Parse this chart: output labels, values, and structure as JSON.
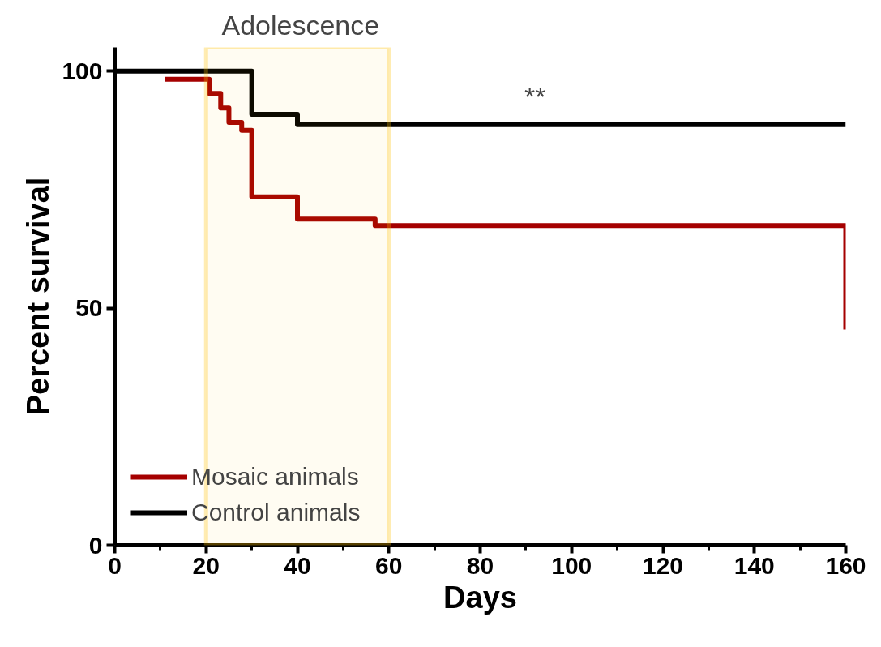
{
  "chart_data": {
    "type": "step",
    "xlabel": "Days",
    "ylabel": "Percent survival",
    "xlim": [
      0,
      160
    ],
    "ylim": [
      0,
      105
    ],
    "xticks": [
      0,
      20,
      40,
      60,
      80,
      100,
      120,
      140,
      160
    ],
    "yticks": [
      0,
      50,
      100
    ],
    "series": [
      {
        "name": "Mosaic animals",
        "color": "#a50000",
        "x": [
          11,
          20.7,
          23.2,
          25,
          27.8,
          30,
          40,
          57,
          160
        ],
        "values": [
          98.3,
          95.3,
          92.2,
          89.2,
          87.5,
          73.5,
          68.8,
          67.4,
          45.5
        ]
      },
      {
        "name": "Control animals",
        "color": "#000000",
        "x": [
          0,
          30,
          40,
          160
        ],
        "values": [
          100,
          90.9,
          88.7,
          88.7
        ]
      }
    ],
    "bands": [
      {
        "axis": "x",
        "from": 20,
        "to": 60,
        "label": "Adolescence",
        "color": "#ffc000"
      }
    ],
    "annotations": [
      "**"
    ],
    "legend": "bottom left",
    "grid": false,
    "marker": "none",
    "line_style": "solid"
  }
}
